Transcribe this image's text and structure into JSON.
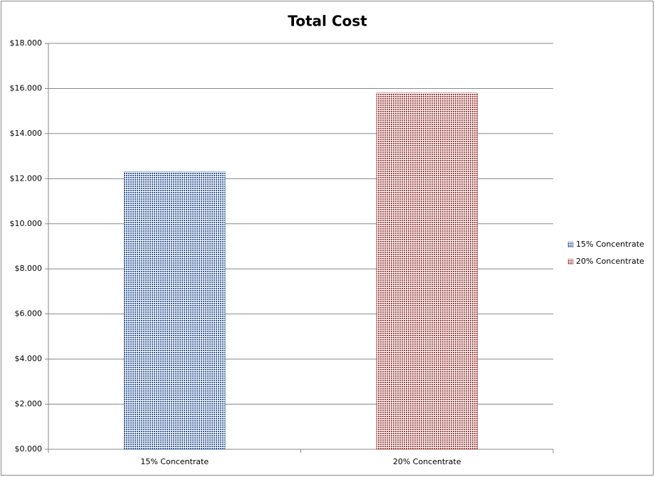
{
  "chart_data": {
    "type": "bar",
    "title": "Total Cost",
    "categories": [
      "15% Concentrate",
      "20% Concentrate"
    ],
    "series": [
      {
        "name": "15% Concentrate",
        "color": "#3a5f9a",
        "values": [
          12.3,
          null
        ]
      },
      {
        "name": "20% Concentrate",
        "color": "#a04848",
        "values": [
          null,
          15.8
        ]
      }
    ],
    "ylim": [
      0,
      18
    ],
    "yticks": [
      {
        "value": 0,
        "label": "$0.000"
      },
      {
        "value": 2,
        "label": "$2.000"
      },
      {
        "value": 4,
        "label": "$4.000"
      },
      {
        "value": 6,
        "label": "$6.000"
      },
      {
        "value": 8,
        "label": "$8.000"
      },
      {
        "value": 10,
        "label": "$10.000"
      },
      {
        "value": 12,
        "label": "$12.000"
      },
      {
        "value": 14,
        "label": "$14.000"
      },
      {
        "value": 16,
        "label": "$16.000"
      },
      {
        "value": 18,
        "label": "$18.000"
      }
    ],
    "grid": true,
    "legend": "right"
  }
}
